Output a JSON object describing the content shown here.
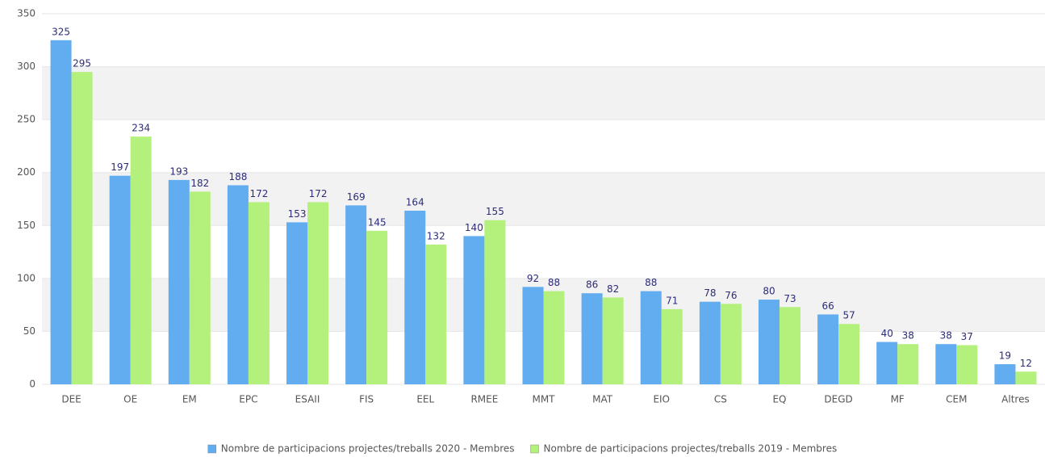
{
  "chart_data": {
    "type": "bar",
    "categories": [
      "DEE",
      "OE",
      "EM",
      "EPC",
      "ESAII",
      "FIS",
      "EEL",
      "RMEE",
      "MMT",
      "MAT",
      "EIO",
      "CS",
      "EQ",
      "DEGD",
      "MF",
      "CEM",
      "Altres"
    ],
    "series": [
      {
        "name": "Nombre de participacions projectes/treballs 2020 - Membres",
        "color": "#62acf0",
        "values": [
          325,
          197,
          193,
          188,
          153,
          169,
          164,
          140,
          92,
          86,
          88,
          78,
          80,
          66,
          40,
          38,
          19
        ]
      },
      {
        "name": "Nombre de participacions projectes/treballs 2019 - Membres",
        "color": "#b4f07c",
        "values": [
          295,
          234,
          182,
          172,
          172,
          145,
          132,
          155,
          88,
          82,
          71,
          76,
          73,
          57,
          38,
          37,
          12
        ]
      }
    ],
    "ylim": [
      0,
      350
    ],
    "yticks": [
      0,
      50,
      100,
      150,
      200,
      250,
      300,
      350
    ],
    "grid": true,
    "legend": "bottom"
  }
}
